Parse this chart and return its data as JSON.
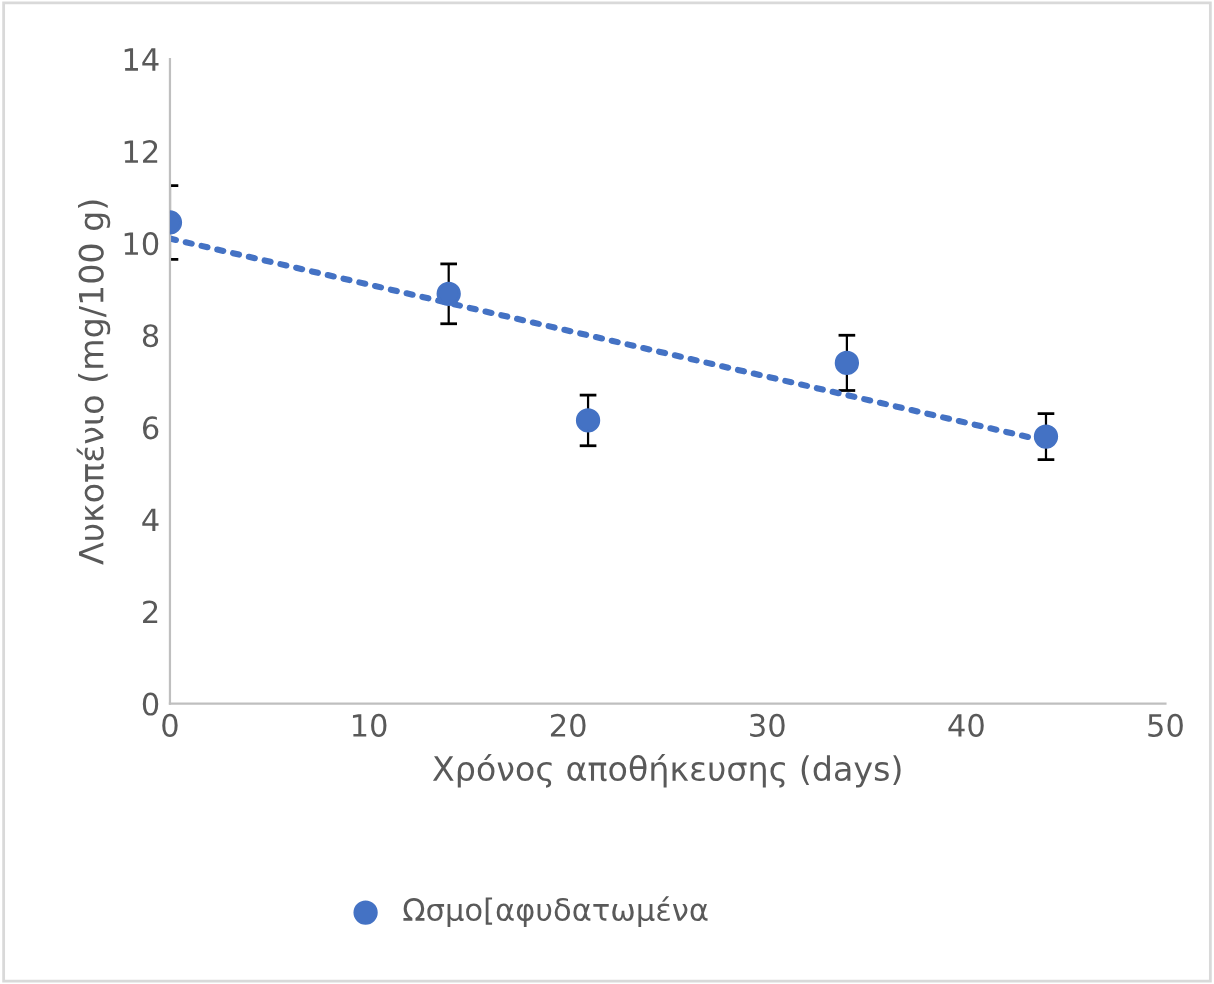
{
  "chart_data": {
    "type": "scatter",
    "xlabel": "Χρόνος αποθήκευσης (days)",
    "ylabel": "Λυκοπένιο (mg/100 g)",
    "xlim": [
      0,
      50
    ],
    "xticks": [
      0,
      10,
      20,
      30,
      40,
      50
    ],
    "ylim": [
      0,
      14
    ],
    "yticks": [
      0,
      2,
      4,
      6,
      8,
      10,
      12,
      14
    ],
    "grid": false,
    "legend": "bottom",
    "series": [
      {
        "name": "Ωσμο[αφυδατωμένα",
        "marker": "circle",
        "color": "#4472c4",
        "x": [
          0,
          14,
          21,
          34,
          44
        ],
        "values": [
          10.45,
          8.9,
          6.15,
          7.4,
          5.8
        ],
        "errors": [
          0.8,
          0.65,
          0.55,
          0.6,
          0.5
        ]
      },
      {
        "type": "line",
        "color": "#4472c4",
        "line_style": "dotted",
        "marker": "none",
        "x": [
          0,
          44
        ],
        "values": [
          10.1,
          5.7
        ]
      }
    ]
  }
}
